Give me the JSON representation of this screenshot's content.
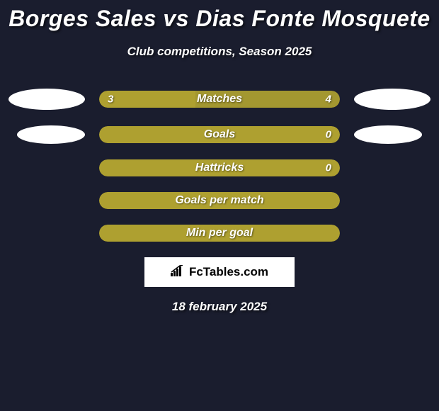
{
  "title": "Borges Sales vs Dias Fonte Mosquete",
  "subtitle": "Club competitions, Season 2025",
  "date": "18 february 2025",
  "logo_text": "FcTables.com",
  "background_color": "#1a1d2e",
  "colors": {
    "player1": "#aea030",
    "player2": "#aea030",
    "bar_bg_empty": "#aea030"
  },
  "rows": [
    {
      "label": "Matches",
      "left_value": "3",
      "right_value": "4",
      "left_pct": 40,
      "right_pct": 60,
      "left_color": "#aea030",
      "right_color": "#a39730",
      "show_ellipses": true,
      "ellipse_class": "1"
    },
    {
      "label": "Goals",
      "left_value": "",
      "right_value": "0",
      "left_pct": 0,
      "right_pct": 100,
      "left_color": "#aea030",
      "right_color": "#aea030",
      "show_ellipses": true,
      "ellipse_class": "2"
    },
    {
      "label": "Hattricks",
      "left_value": "",
      "right_value": "0",
      "left_pct": 0,
      "right_pct": 100,
      "left_color": "#aea030",
      "right_color": "#aea030",
      "show_ellipses": false
    },
    {
      "label": "Goals per match",
      "left_value": "",
      "right_value": "",
      "left_pct": 0,
      "right_pct": 100,
      "left_color": "#aea030",
      "right_color": "#aea030",
      "show_ellipses": false
    },
    {
      "label": "Min per goal",
      "left_value": "",
      "right_value": "",
      "left_pct": 0,
      "right_pct": 100,
      "left_color": "#aea030",
      "right_color": "#aea030",
      "show_ellipses": false
    }
  ]
}
